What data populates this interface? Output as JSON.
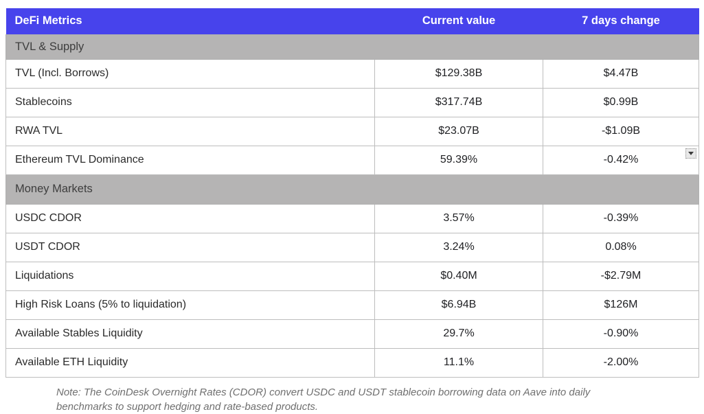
{
  "columns": {
    "metric": "DeFi Metrics",
    "current": "Current value",
    "change": "7 days change"
  },
  "sections": [
    {
      "title": "TVL & Supply"
    },
    {
      "title": "Money Markets"
    }
  ],
  "rows": [
    {
      "label": "TVL (Incl. Borrows)",
      "current": "$129.38B",
      "change": "$4.47B"
    },
    {
      "label": "Stablecoins",
      "current": "$317.74B",
      "change": "$0.99B"
    },
    {
      "label": "RWA TVL",
      "current": "$23.07B",
      "change": "-$1.09B"
    },
    {
      "label": "Ethereum TVL Dominance",
      "current": "59.39%",
      "change": "-0.42%"
    },
    {
      "label": "USDC CDOR",
      "current": "3.57%",
      "change": "-0.39%"
    },
    {
      "label": "USDT CDOR",
      "current": "3.24%",
      "change": "0.08%"
    },
    {
      "label": "Liquidations",
      "current": "$0.40M",
      "change": "-$2.79M"
    },
    {
      "label": "High Risk Loans (5% to liquidation)",
      "current": "$6.94B",
      "change": "$126M"
    },
    {
      "label": "Available Stables Liquidity",
      "current": "29.7%",
      "change": "-0.90%"
    },
    {
      "label": "Available ETH Liquidity",
      "current": "11.1%",
      "change": "-2.00%"
    }
  ],
  "note": {
    "line1": "Note: The CoinDesk Overnight Rates (CDOR) convert USDC and USDT stablecoin borrowing data on Aave into daily",
    "line2": "benchmarks to support hedging and rate-based products."
  },
  "icons": {
    "row_dropdown": "caret-down-icon"
  },
  "colors": {
    "header_bg": "#4743ec",
    "header_text": "#ffffff",
    "section_bg": "#b5b4b4",
    "grid_line": "#bdbdbd",
    "row_text": "#202124",
    "note_text": "#6f6f6f",
    "dropdown_bg": "#e9e9e9"
  }
}
